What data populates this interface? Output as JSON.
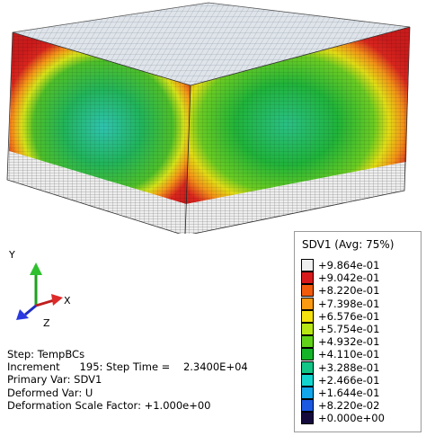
{
  "legend": {
    "title": "SDV1 (Avg: 75%)",
    "entries": [
      {
        "label": "+9.864e-01",
        "color": "#f0f0f0"
      },
      {
        "label": "+9.042e-01",
        "color": "#d7191c"
      },
      {
        "label": "+8.220e-01",
        "color": "#f25a0c"
      },
      {
        "label": "+7.398e-01",
        "color": "#f99a12"
      },
      {
        "label": "+6.576e-01",
        "color": "#f5e10d"
      },
      {
        "label": "+5.754e-01",
        "color": "#b7e614"
      },
      {
        "label": "+4.932e-01",
        "color": "#60d21a"
      },
      {
        "label": "+4.110e-01",
        "color": "#14b428"
      },
      {
        "label": "+3.288e-01",
        "color": "#11c687"
      },
      {
        "label": "+2.466e-01",
        "color": "#13d5d0"
      },
      {
        "label": "+1.644e-01",
        "color": "#12a6ea"
      },
      {
        "label": "+8.220e-02",
        "color": "#1b59e3"
      },
      {
        "label": "+0.000e+00",
        "color": "#150a3c"
      }
    ]
  },
  "triad": {
    "x": "X",
    "y": "Y",
    "z": "Z"
  },
  "info": {
    "step": "Step: TempBCs",
    "increment": "Increment      195: Step Time =    2.3400E+04",
    "primary": "Primary Var: SDV1",
    "deformed": "Deformed Var: U",
    "scale": "Deformation Scale Factor: +1.000e+00"
  }
}
